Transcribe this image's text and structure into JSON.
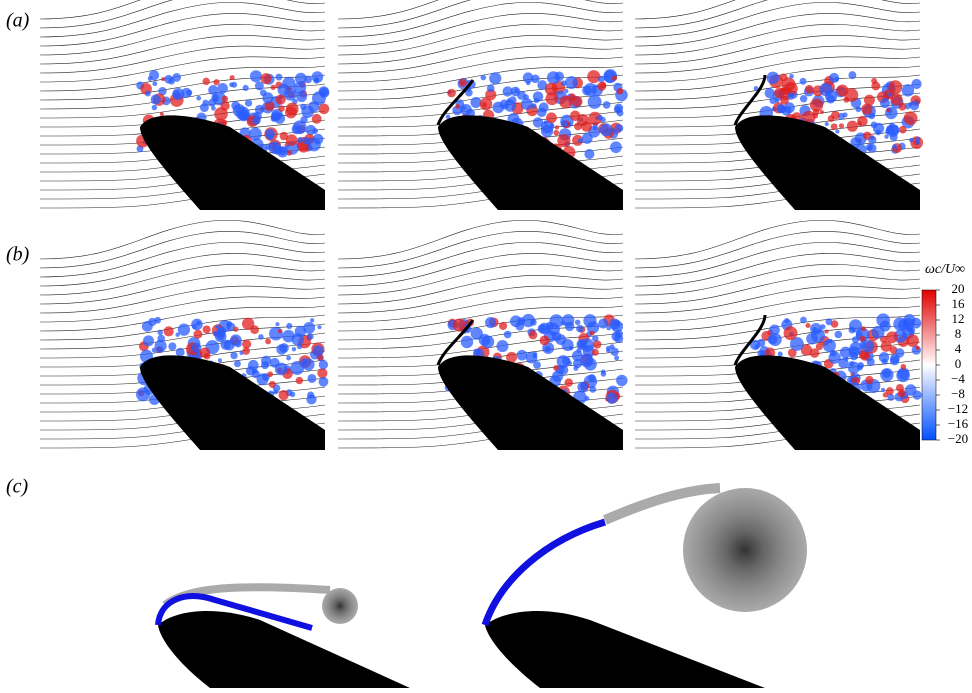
{
  "panels": [
    {
      "label": "(a)"
    },
    {
      "label": "(b)"
    },
    {
      "label": "(c)"
    }
  ],
  "colorbar": {
    "title": "ωc/U∞",
    "range": [
      -20,
      20
    ],
    "ticks": [
      20,
      16,
      12,
      8,
      4,
      0,
      {
        "value": -4,
        "label": "−4"
      },
      {
        "value": -8,
        "label": "−8"
      },
      {
        "value": -12,
        "label": "−12"
      },
      {
        "value": -16,
        "label": "−16"
      },
      {
        "value": -20,
        "label": "−20"
      }
    ]
  }
}
